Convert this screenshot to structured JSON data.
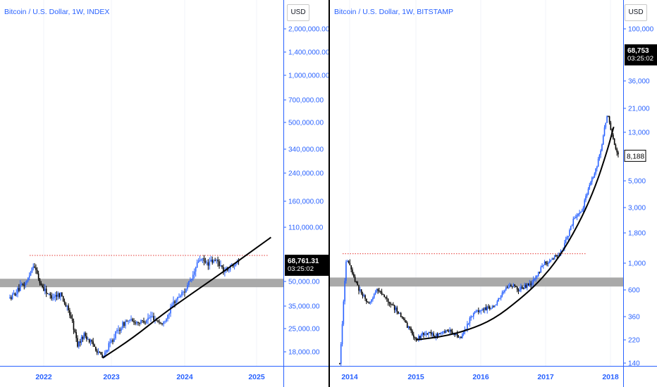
{
  "chart_data": [
    {
      "type": "candlestick",
      "title": "Bitcoin / U.S. Dollar, 1W, INDEX",
      "scale": "log",
      "currency_label": "USD",
      "x_tick_labels": [
        "2022",
        "2023",
        "2024",
        "2025"
      ],
      "y_tick_labels": [
        "2,000,000.00",
        "1,400,000.00",
        "1,000,000.00",
        "700,000.00",
        "500,000.00",
        "340,000.00",
        "240,000.00",
        "160,000.00",
        "110,000.00",
        "50,000.00",
        "35,000.00",
        "25,000.00",
        "18,000.00"
      ],
      "last_price_label": "68,761.31",
      "countdown_label": "03:25:02",
      "previous_high_level": 73000,
      "support_band": [
        46000,
        52000
      ],
      "price_path": [
        [
          2021.5,
          39000
        ],
        [
          2021.75,
          50000
        ],
        [
          2021.85,
          65000
        ],
        [
          2021.95,
          48000
        ],
        [
          2022.1,
          40000
        ],
        [
          2022.25,
          42000
        ],
        [
          2022.4,
          30000
        ],
        [
          2022.5,
          20000
        ],
        [
          2022.6,
          23000
        ],
        [
          2022.75,
          19500
        ],
        [
          2022.87,
          16500
        ],
        [
          2023.05,
          23000
        ],
        [
          2023.2,
          28000
        ],
        [
          2023.4,
          27500
        ],
        [
          2023.55,
          30000
        ],
        [
          2023.7,
          26500
        ],
        [
          2023.85,
          37000
        ],
        [
          2024.0,
          44000
        ],
        [
          2024.1,
          52000
        ],
        [
          2024.2,
          70000
        ],
        [
          2024.3,
          65000
        ],
        [
          2024.45,
          68000
        ],
        [
          2024.55,
          58000
        ],
        [
          2024.65,
          63000
        ],
        [
          2024.75,
          69000
        ]
      ],
      "trend_curve": [
        [
          2022.87,
          16500
        ],
        [
          2023.3,
          22000
        ],
        [
          2023.7,
          31000
        ],
        [
          2024.1,
          42000
        ],
        [
          2024.5,
          56000
        ],
        [
          2024.85,
          73000
        ],
        [
          2025.2,
          95000
        ]
      ]
    },
    {
      "type": "candlestick",
      "title": "Bitcoin / U.S. Dollar, 1W, BITSTAMP",
      "scale": "log",
      "currency_label": "USD",
      "x_tick_labels": [
        "2014",
        "2015",
        "2016",
        "2017",
        "2018"
      ],
      "y_tick_labels": [
        "100,000",
        "36,000",
        "21,000",
        "13,000",
        "5,000",
        "3,000",
        "1,800",
        "1,000",
        "600",
        "360",
        "220",
        "140"
      ],
      "last_price_label": "68,753",
      "countdown_label": "03:25:02",
      "marker_label": "8,188",
      "previous_high_level": 1200,
      "support_band": [
        640,
        760
      ],
      "price_path": [
        [
          2013.85,
          140
        ],
        [
          2013.9,
          400
        ],
        [
          2013.95,
          1100
        ],
        [
          2014.05,
          800
        ],
        [
          2014.15,
          600
        ],
        [
          2014.3,
          450
        ],
        [
          2014.4,
          620
        ],
        [
          2014.6,
          480
        ],
        [
          2014.8,
          350
        ],
        [
          2015.0,
          220
        ],
        [
          2015.15,
          260
        ],
        [
          2015.3,
          240
        ],
        [
          2015.5,
          270
        ],
        [
          2015.7,
          230
        ],
        [
          2015.85,
          360
        ],
        [
          2016.0,
          420
        ],
        [
          2016.2,
          430
        ],
        [
          2016.4,
          640
        ],
        [
          2016.5,
          660
        ],
        [
          2016.6,
          600
        ],
        [
          2016.8,
          700
        ],
        [
          2016.95,
          950
        ],
        [
          2017.1,
          1100
        ],
        [
          2017.25,
          1250
        ],
        [
          2017.45,
          2500
        ],
        [
          2017.55,
          2700
        ],
        [
          2017.65,
          4200
        ],
        [
          2017.75,
          5700
        ],
        [
          2017.85,
          9000
        ],
        [
          2017.95,
          19000
        ],
        [
          2018.0,
          14000
        ],
        [
          2018.08,
          9500
        ],
        [
          2018.12,
          8188
        ]
      ],
      "trend_curve": [
        [
          2015.0,
          220
        ],
        [
          2015.4,
          235
        ],
        [
          2015.8,
          270
        ],
        [
          2016.2,
          340
        ],
        [
          2016.6,
          500
        ],
        [
          2016.9,
          700
        ],
        [
          2017.2,
          1100
        ],
        [
          2017.5,
          2100
        ],
        [
          2017.75,
          4200
        ],
        [
          2017.95,
          9000
        ],
        [
          2018.05,
          14500
        ]
      ]
    }
  ]
}
